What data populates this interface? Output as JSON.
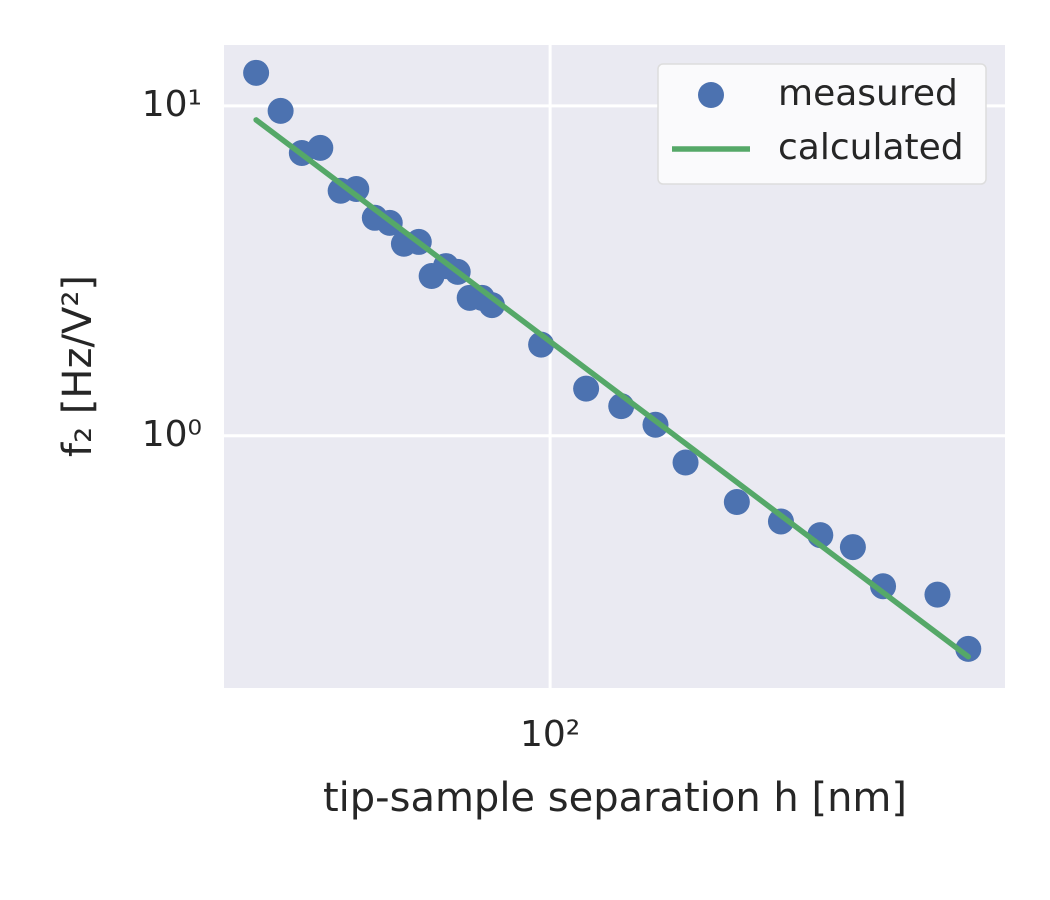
{
  "chart_data": {
    "type": "scatter",
    "xlabel": "tip-sample separation h [nm]",
    "ylabel": "f₂ [Hz/V²]",
    "xscale": "log",
    "yscale": "log",
    "grid": true,
    "legend": "upper right",
    "xlim": [
      32,
      490
    ],
    "ylim": [
      0.172,
      15.3
    ],
    "xticks": [
      {
        "value": 100,
        "label": "10²"
      }
    ],
    "yticks": [
      {
        "value": 1,
        "label": "10⁰"
      },
      {
        "value": 10,
        "label": "10¹"
      }
    ],
    "series": [
      {
        "name": "measured",
        "type": "scatter",
        "color": "#4c72b0",
        "x": [
          35.8,
          39.0,
          42.0,
          44.8,
          48.1,
          50.8,
          54.2,
          57.1,
          60.0,
          63.2,
          66.1,
          69.5,
          72.4,
          75.5,
          78.8,
          81.6,
          96.9,
          113.4,
          128.2,
          144.5,
          160.5,
          192,
          224,
          257,
          288,
          320,
          387,
          431
        ],
        "values": [
          12.6,
          9.66,
          7.2,
          7.46,
          5.53,
          5.6,
          4.58,
          4.42,
          3.82,
          3.87,
          3.05,
          3.27,
          3.14,
          2.62,
          2.62,
          2.49,
          1.89,
          1.39,
          1.23,
          1.08,
          0.83,
          0.63,
          0.55,
          0.5,
          0.46,
          0.35,
          0.33,
          0.226
        ]
      },
      {
        "name": "calculated",
        "type": "line",
        "color": "#55a868",
        "x": [
          35.8,
          431
        ],
        "values": [
          9.07,
          0.214
        ]
      }
    ]
  }
}
